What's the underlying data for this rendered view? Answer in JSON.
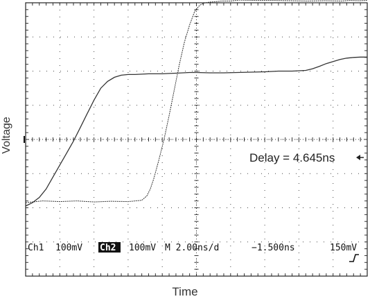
{
  "chart_data": {
    "type": "line",
    "xlabel": "Time",
    "ylabel": "Voltage",
    "xlim": [
      -1.5,
      18.5
    ],
    "ylim": [
      -4,
      4
    ],
    "grid": true,
    "series": [
      {
        "x": [
          -1.5,
          -1.1,
          -0.7,
          -0.3,
          0.1,
          0.5,
          0.9,
          1.3,
          1.7,
          2.1,
          2.5,
          2.9,
          3.3,
          3.7,
          4.1,
          4.5,
          4.9,
          5.3,
          5.7,
          6.1,
          6.5,
          6.9,
          7.3,
          7.7,
          8.1,
          8.5,
          9.3,
          10.1,
          10.9,
          11.7,
          12.5,
          13.3,
          14.1,
          14.9,
          15.3,
          15.7,
          16.1,
          16.5,
          16.9,
          17.3,
          17.7,
          18.1,
          18.5
        ],
        "y": [
          -1.95,
          -1.85,
          -1.7,
          -1.45,
          -1.1,
          -0.75,
          -0.4,
          -0.05,
          0.35,
          0.75,
          1.15,
          1.5,
          1.7,
          1.82,
          1.88,
          1.9,
          1.9,
          1.91,
          1.92,
          1.92,
          1.92,
          1.93,
          1.94,
          1.95,
          1.96,
          1.96,
          1.95,
          1.95,
          1.96,
          1.97,
          1.98,
          2.0,
          2.0,
          2.02,
          2.07,
          2.14,
          2.22,
          2.28,
          2.34,
          2.38,
          2.4,
          2.41,
          2.41
        ]
      },
      {
        "x": [
          -1.5,
          -0.5,
          0.5,
          1.5,
          2.5,
          3.5,
          4.5,
          5.3,
          5.6,
          5.8,
          6.0,
          6.3,
          6.6,
          6.9,
          7.2,
          7.5,
          7.8,
          8.1,
          8.4,
          8.7,
          9.0,
          9.3,
          9.6,
          10.0,
          10.5,
          11.0,
          12.0,
          13.0,
          14.0,
          15.0,
          16.0,
          17.0,
          17.5,
          18.0,
          18.5
        ],
        "y": [
          -1.85,
          -1.8,
          -1.82,
          -1.8,
          -1.83,
          -1.81,
          -1.82,
          -1.78,
          -1.65,
          -1.45,
          -1.15,
          -0.6,
          0.0,
          0.7,
          1.45,
          2.2,
          2.85,
          3.35,
          3.75,
          3.93,
          4.0,
          4.02,
          4.03,
          4.05,
          4.05,
          4.08,
          4.07,
          4.07,
          4.06,
          4.05,
          4.06,
          4.05,
          4.07,
          4.06,
          4.07
        ]
      }
    ],
    "annotations": {
      "delay": "Delay = 4.645ns",
      "status": {
        "ch1": "Ch1",
        "ch1_scale": "100mV",
        "ch2": "Ch2",
        "ch2_scale": "100mV",
        "timebase": "M 2.00ns/d",
        "position": "−1.500ns",
        "trigger": "150mV"
      }
    }
  }
}
